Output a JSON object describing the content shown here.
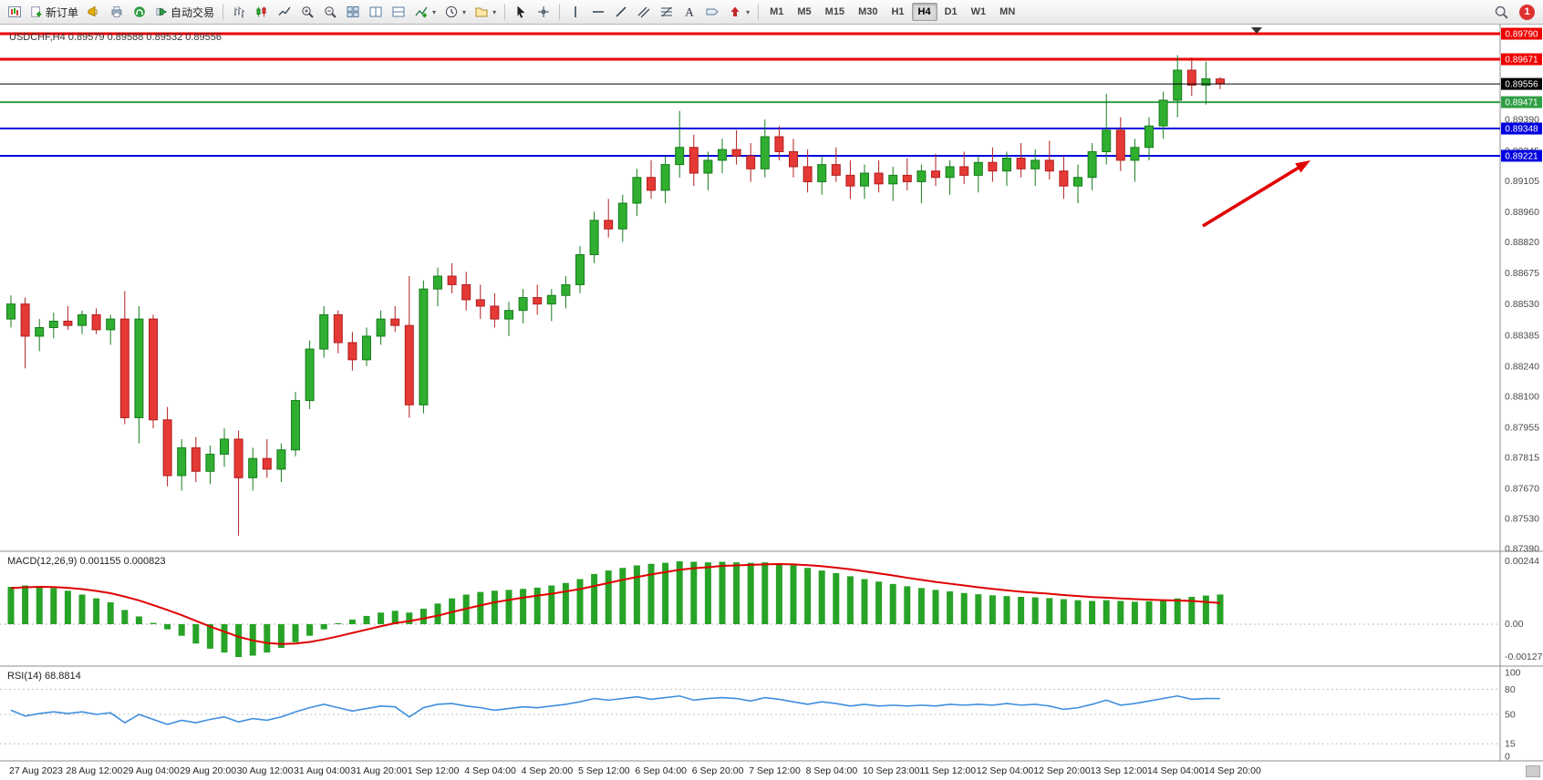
{
  "toolbar": {
    "new_order": "新订单",
    "auto_trading": "自动交易",
    "timeframes": [
      "M1",
      "M5",
      "M15",
      "M30",
      "H1",
      "H4",
      "D1",
      "W1",
      "MN"
    ],
    "active_timeframe": "H4",
    "notification_badge": "1",
    "icons": [
      "new-chart",
      "megaphone",
      "print",
      "support",
      "autotrading-play",
      "chart-bars",
      "chart-candles",
      "chart-line",
      "zoom-in",
      "zoom-out",
      "tile-windows",
      "split-vertical",
      "split-horizontal",
      "indicator-add",
      "clock",
      "chart-profiles",
      "cursor",
      "crosshair",
      "vertical-line",
      "horizontal-line",
      "trendline",
      "channel",
      "fibonacci",
      "text-tool",
      "label-tool",
      "arrow-tool",
      "search",
      "notification"
    ]
  },
  "colors": {
    "candle_up": "#2fae2f",
    "candle_up_border": "#177d1d",
    "candle_down": "#e53935",
    "candle_down_border": "#b02020",
    "macd_histogram": "#27a327",
    "macd_signal": "#e00000",
    "rsi_line": "#3f8fde",
    "arrow": "#e00000",
    "hline_red": "#ee0000",
    "hline_green": "#2f9e44",
    "hline_blue": "#0000e0",
    "current_price_bg": "#000000"
  },
  "chart_data": {
    "type": "candlestick",
    "symbol": "USDCHF",
    "timeframe": "H4",
    "info_line": "USDCHF,H4  0.89579 0.89588 0.89532 0.89556",
    "current_price": "0.89556",
    "hlines": [
      {
        "label": "0.89790",
        "price": 0.8979,
        "color": "#ee0000",
        "width": 3
      },
      {
        "label": "0.89671",
        "price": 0.89671,
        "color": "#ee0000",
        "width": 3
      },
      {
        "label": "0.89471",
        "price": 0.89471,
        "color": "#2f9e44",
        "width": 2
      },
      {
        "label": "0.89348",
        "price": 0.89348,
        "color": "#0000e0",
        "width": 2
      },
      {
        "label": "0.89221",
        "price": 0.89221,
        "color": "#0000e0",
        "width": 2
      }
    ],
    "price_axis_labels": [
      "0.89390",
      "0.89245",
      "0.89105",
      "0.88960",
      "0.88820",
      "0.88675",
      "0.88530",
      "0.88385",
      "0.88240",
      "0.88100",
      "0.87955",
      "0.87815",
      "0.87670",
      "0.87530",
      "0.87390"
    ],
    "x_axis_labels": [
      "27 Aug 2023",
      "28 Aug 12:00",
      "29 Aug 04:00",
      "29 Aug 20:00",
      "30 Aug 12:00",
      "31 Aug 04:00",
      "31 Aug 20:00",
      "1 Sep 12:00",
      "4 Sep 04:00",
      "4 Sep 20:00",
      "5 Sep 12:00",
      "6 Sep 04:00",
      "6 Sep 20:00",
      "7 Sep 12:00",
      "8 Sep 04:00",
      "10 Sep 23:00",
      "11 Sep 12:00",
      "12 Sep 04:00",
      "12 Sep 20:00",
      "13 Sep 12:00",
      "14 Sep 04:00",
      "14 Sep 20:00"
    ],
    "ohlc": [
      [
        0.8846,
        0.8857,
        0.8842,
        0.8853
      ],
      [
        0.8853,
        0.8856,
        0.8823,
        0.8838
      ],
      [
        0.8838,
        0.8846,
        0.8831,
        0.8842
      ],
      [
        0.8842,
        0.8849,
        0.8837,
        0.8845
      ],
      [
        0.8845,
        0.8852,
        0.8841,
        0.8843
      ],
      [
        0.8843,
        0.885,
        0.8839,
        0.8848
      ],
      [
        0.8848,
        0.8851,
        0.8839,
        0.8841
      ],
      [
        0.8841,
        0.8848,
        0.8834,
        0.8846
      ],
      [
        0.8846,
        0.8859,
        0.8797,
        0.88
      ],
      [
        0.88,
        0.8852,
        0.8788,
        0.8846
      ],
      [
        0.8846,
        0.8848,
        0.8795,
        0.8799
      ],
      [
        0.8799,
        0.8805,
        0.8768,
        0.8773
      ],
      [
        0.8773,
        0.879,
        0.8766,
        0.8786
      ],
      [
        0.8786,
        0.8791,
        0.877,
        0.8775
      ],
      [
        0.8775,
        0.8787,
        0.8769,
        0.8783
      ],
      [
        0.8783,
        0.8795,
        0.8777,
        0.879
      ],
      [
        0.879,
        0.8794,
        0.8745,
        0.8772
      ],
      [
        0.8772,
        0.8786,
        0.8766,
        0.8781
      ],
      [
        0.8781,
        0.879,
        0.8772,
        0.8776
      ],
      [
        0.8776,
        0.8788,
        0.877,
        0.8785
      ],
      [
        0.8785,
        0.8812,
        0.8782,
        0.8808
      ],
      [
        0.8808,
        0.8836,
        0.8804,
        0.8832
      ],
      [
        0.8832,
        0.8852,
        0.8828,
        0.8848
      ],
      [
        0.8848,
        0.885,
        0.883,
        0.8835
      ],
      [
        0.8835,
        0.884,
        0.8822,
        0.8827
      ],
      [
        0.8827,
        0.8842,
        0.8824,
        0.8838
      ],
      [
        0.8838,
        0.885,
        0.8834,
        0.8846
      ],
      [
        0.8846,
        0.8852,
        0.884,
        0.8843
      ],
      [
        0.8843,
        0.8866,
        0.88,
        0.8806
      ],
      [
        0.8806,
        0.8864,
        0.8802,
        0.886
      ],
      [
        0.886,
        0.887,
        0.8852,
        0.8866
      ],
      [
        0.8866,
        0.8872,
        0.8858,
        0.8862
      ],
      [
        0.8862,
        0.8868,
        0.885,
        0.8855
      ],
      [
        0.8855,
        0.8862,
        0.8846,
        0.8852
      ],
      [
        0.8852,
        0.8858,
        0.8842,
        0.8846
      ],
      [
        0.8846,
        0.8854,
        0.8838,
        0.885
      ],
      [
        0.885,
        0.886,
        0.8844,
        0.8856
      ],
      [
        0.8856,
        0.8862,
        0.8848,
        0.8853
      ],
      [
        0.8853,
        0.886,
        0.8845,
        0.8857
      ],
      [
        0.8857,
        0.8866,
        0.8851,
        0.8862
      ],
      [
        0.8862,
        0.888,
        0.8858,
        0.8876
      ],
      [
        0.8876,
        0.8896,
        0.8872,
        0.8892
      ],
      [
        0.8892,
        0.8902,
        0.8884,
        0.8888
      ],
      [
        0.8888,
        0.8904,
        0.8882,
        0.89
      ],
      [
        0.89,
        0.8916,
        0.8894,
        0.8912
      ],
      [
        0.8912,
        0.892,
        0.8902,
        0.8906
      ],
      [
        0.8906,
        0.8922,
        0.89,
        0.8918
      ],
      [
        0.8918,
        0.8943,
        0.8912,
        0.8926
      ],
      [
        0.8926,
        0.8932,
        0.8908,
        0.8914
      ],
      [
        0.8914,
        0.8924,
        0.8906,
        0.892
      ],
      [
        0.892,
        0.893,
        0.8914,
        0.8925
      ],
      [
        0.8925,
        0.8934,
        0.8918,
        0.8922
      ],
      [
        0.8922,
        0.8928,
        0.891,
        0.8916
      ],
      [
        0.8916,
        0.8939,
        0.8912,
        0.8931
      ],
      [
        0.8931,
        0.8936,
        0.892,
        0.8924
      ],
      [
        0.8924,
        0.893,
        0.8912,
        0.8917
      ],
      [
        0.8917,
        0.8925,
        0.8905,
        0.891
      ],
      [
        0.891,
        0.8922,
        0.8904,
        0.8918
      ],
      [
        0.8918,
        0.8926,
        0.891,
        0.8913
      ],
      [
        0.8913,
        0.892,
        0.8902,
        0.8908
      ],
      [
        0.8908,
        0.8918,
        0.8902,
        0.8914
      ],
      [
        0.8914,
        0.892,
        0.8905,
        0.8909
      ],
      [
        0.8909,
        0.8917,
        0.8901,
        0.8913
      ],
      [
        0.8913,
        0.8921,
        0.8906,
        0.891
      ],
      [
        0.891,
        0.8918,
        0.89,
        0.8915
      ],
      [
        0.8915,
        0.8923,
        0.8908,
        0.8912
      ],
      [
        0.8912,
        0.892,
        0.8904,
        0.8917
      ],
      [
        0.8917,
        0.8924,
        0.8909,
        0.8913
      ],
      [
        0.8913,
        0.8922,
        0.8905,
        0.8919
      ],
      [
        0.8919,
        0.8926,
        0.891,
        0.8915
      ],
      [
        0.8915,
        0.8924,
        0.8908,
        0.8921
      ],
      [
        0.8921,
        0.8928,
        0.8912,
        0.8916
      ],
      [
        0.8916,
        0.8925,
        0.8908,
        0.892
      ],
      [
        0.892,
        0.8929,
        0.8911,
        0.8915
      ],
      [
        0.8915,
        0.8922,
        0.8902,
        0.8908
      ],
      [
        0.8908,
        0.8918,
        0.89,
        0.8912
      ],
      [
        0.8912,
        0.8928,
        0.8906,
        0.8924
      ],
      [
        0.8924,
        0.8951,
        0.8918,
        0.8934
      ],
      [
        0.8934,
        0.894,
        0.8915,
        0.892
      ],
      [
        0.892,
        0.893,
        0.891,
        0.8926
      ],
      [
        0.8926,
        0.894,
        0.892,
        0.8936
      ],
      [
        0.8936,
        0.8952,
        0.893,
        0.8948
      ],
      [
        0.8948,
        0.8969,
        0.894,
        0.8962
      ],
      [
        0.8962,
        0.8968,
        0.895,
        0.8955
      ],
      [
        0.8955,
        0.8966,
        0.8946,
        0.8958
      ],
      [
        0.89579,
        0.89588,
        0.89532,
        0.89556
      ]
    ],
    "macd": {
      "label": "MACD(12,26,9) 0.001155 0.000823",
      "scale_labels": [
        "0.00244",
        "0.00",
        "-0.001273"
      ],
      "values": [
        0.00145,
        0.0015,
        0.00148,
        0.0014,
        0.0013,
        0.00115,
        0.001,
        0.00085,
        0.00055,
        0.0003,
        5e-05,
        -0.0002,
        -0.00045,
        -0.00075,
        -0.00095,
        -0.0011,
        -0.00127,
        -0.00122,
        -0.0011,
        -0.00092,
        -0.0007,
        -0.00045,
        -0.0002,
        2e-05,
        0.00018,
        0.00032,
        0.00045,
        0.00052,
        0.00045,
        0.0006,
        0.0008,
        0.001,
        0.00115,
        0.00125,
        0.0013,
        0.00133,
        0.00137,
        0.00142,
        0.0015,
        0.0016,
        0.00175,
        0.00195,
        0.00208,
        0.00218,
        0.00228,
        0.00234,
        0.00238,
        0.00244,
        0.00242,
        0.0024,
        0.00242,
        0.0024,
        0.00238,
        0.0024,
        0.00235,
        0.00228,
        0.00218,
        0.00208,
        0.00198,
        0.00186,
        0.00175,
        0.00165,
        0.00156,
        0.00147,
        0.0014,
        0.00133,
        0.00127,
        0.00121,
        0.00116,
        0.00112,
        0.00109,
        0.00106,
        0.00104,
        0.00101,
        0.00097,
        0.00093,
        0.0009,
        0.00093,
        0.0009,
        0.00087,
        0.00089,
        0.00093,
        0.001,
        0.00106,
        0.00111,
        0.001155
      ],
      "signal": [
        0.0014,
        0.00143,
        0.00145,
        0.00144,
        0.00141,
        0.00136,
        0.00129,
        0.0012,
        0.00107,
        0.00092,
        0.00074,
        0.00055,
        0.00035,
        0.00013,
        -9e-05,
        -0.00029,
        -0.00049,
        -0.00063,
        -0.00073,
        -0.00077,
        -0.00075,
        -0.00069,
        -0.00059,
        -0.00047,
        -0.00034,
        -0.00021,
        -8e-05,
        4e-05,
        0.00012,
        0.00022,
        0.00033,
        0.00047,
        0.0006,
        0.00073,
        0.00085,
        0.00094,
        0.00103,
        0.00111,
        0.00118,
        0.00127,
        0.00136,
        0.00148,
        0.0016,
        0.00172,
        0.00183,
        0.00193,
        0.00202,
        0.00211,
        0.00217,
        0.00221,
        0.00226,
        0.00228,
        0.0023,
        0.00232,
        0.00233,
        0.00232,
        0.00229,
        0.00225,
        0.00219,
        0.00213,
        0.00205,
        0.00197,
        0.00189,
        0.0018,
        0.00172,
        0.00164,
        0.00157,
        0.0015,
        0.00143,
        0.00137,
        0.00131,
        0.00126,
        0.00122,
        0.00118,
        0.00113,
        0.00109,
        0.00105,
        0.00103,
        0.001,
        0.00097,
        0.00095,
        0.00093,
        0.00092,
        0.0009,
        0.00086,
        0.000823
      ]
    },
    "rsi": {
      "label": "RSI(14) 68.8814",
      "scale_labels": [
        "100",
        "80",
        "50",
        "15",
        "0"
      ],
      "levels": [
        80,
        50,
        15
      ],
      "values": [
        55,
        48,
        51,
        53,
        51,
        53,
        50,
        52,
        40,
        50,
        44,
        38,
        43,
        40,
        44,
        47,
        41,
        45,
        43,
        47,
        53,
        58,
        62,
        58,
        54,
        57,
        60,
        59,
        47,
        58,
        62,
        63,
        60,
        58,
        55,
        57,
        59,
        58,
        60,
        62,
        65,
        69,
        67,
        69,
        71,
        68,
        70,
        72,
        67,
        69,
        70,
        69,
        66,
        70,
        68,
        65,
        62,
        65,
        63,
        60,
        62,
        60,
        61,
        60,
        61,
        60,
        62,
        61,
        62,
        61,
        63,
        61,
        62,
        60,
        56,
        58,
        62,
        67,
        61,
        63,
        66,
        69,
        72,
        68,
        69,
        68.88
      ]
    },
    "annotations": {
      "red_up_arrow": {
        "color": "#e00000"
      }
    }
  }
}
